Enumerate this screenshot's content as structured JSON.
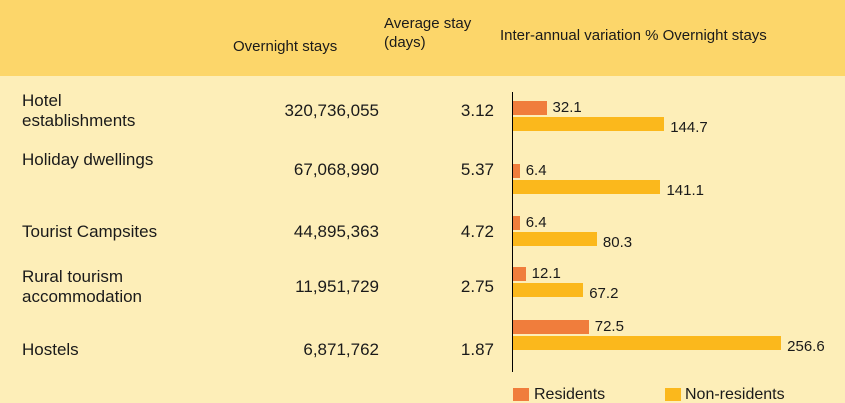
{
  "header": {
    "overnight_stays": "Overnight stays",
    "average_stay": "Average stay (days)",
    "variation": "Inter-annual variation % Overnight stays"
  },
  "table": {
    "rows": [
      {
        "name": "Hotel establishments",
        "overnight_stays": "320,736,055",
        "average_stay": "3.12",
        "residents": 32.1,
        "non_residents": 144.7
      },
      {
        "name": "Holiday dwellings",
        "overnight_stays": "67,068,990",
        "average_stay": "5.37",
        "residents": 6.4,
        "non_residents": 141.1
      },
      {
        "name": "Tourist Campsites",
        "overnight_stays": "44,895,363",
        "average_stay": "4.72",
        "residents": 6.4,
        "non_residents": 80.3
      },
      {
        "name": "Rural tourism accommodation",
        "overnight_stays": "11,951,729",
        "average_stay": "2.75",
        "residents": 12.1,
        "non_residents": 67.2
      },
      {
        "name": "Hostels",
        "overnight_stays": "6,871,762",
        "average_stay": "1.87",
        "residents": 72.5,
        "non_residents": 256.6
      }
    ]
  },
  "legend": {
    "residents": {
      "label": "Residents",
      "color": "#f07d3c"
    },
    "non_residents": {
      "label": "Non-residents",
      "color": "#fbb81c"
    }
  }
}
